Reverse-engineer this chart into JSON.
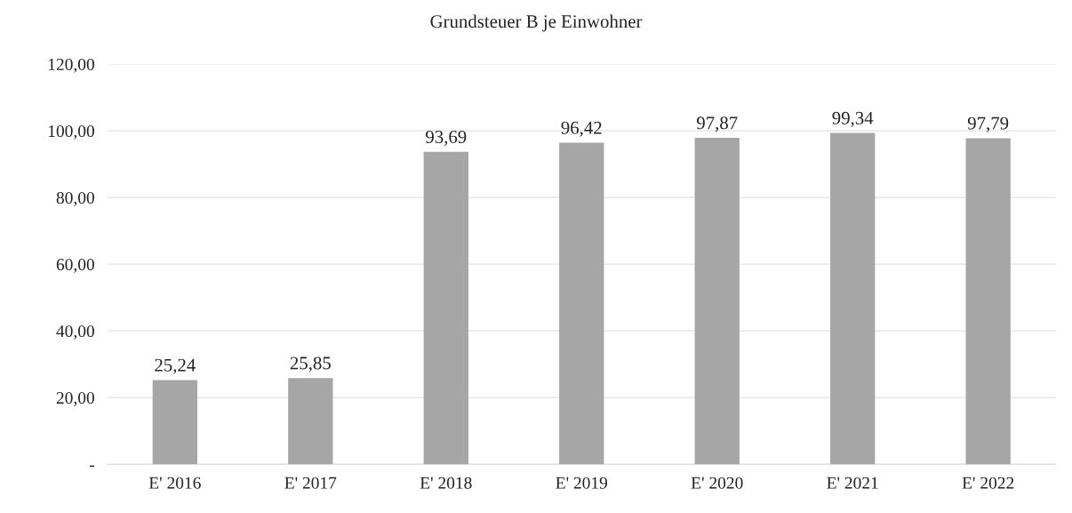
{
  "chart_data": {
    "type": "bar",
    "title": "Grundsteuer B je Einwohner",
    "categories": [
      "E' 2016",
      "E' 2017",
      "E' 2018",
      "E' 2019",
      "E' 2020",
      "E' 2021",
      "E' 2022"
    ],
    "values": [
      25.24,
      25.85,
      93.69,
      96.42,
      97.87,
      99.34,
      97.79
    ],
    "value_labels": [
      "25,24",
      "25,85",
      "93,69",
      "96,42",
      "97,87",
      "99,34",
      "97,79"
    ],
    "color": "#a6a6a6",
    "ylim": [
      0,
      120
    ],
    "yticks": [
      {
        "value": 0,
        "label": "-"
      },
      {
        "value": 20,
        "label": "20,00"
      },
      {
        "value": 40,
        "label": "40,00"
      },
      {
        "value": 60,
        "label": "60,00"
      },
      {
        "value": 80,
        "label": "80,00"
      },
      {
        "value": 100,
        "label": "100,00"
      },
      {
        "value": 120,
        "label": "120,00"
      }
    ],
    "grid": "y",
    "legend": false
  }
}
